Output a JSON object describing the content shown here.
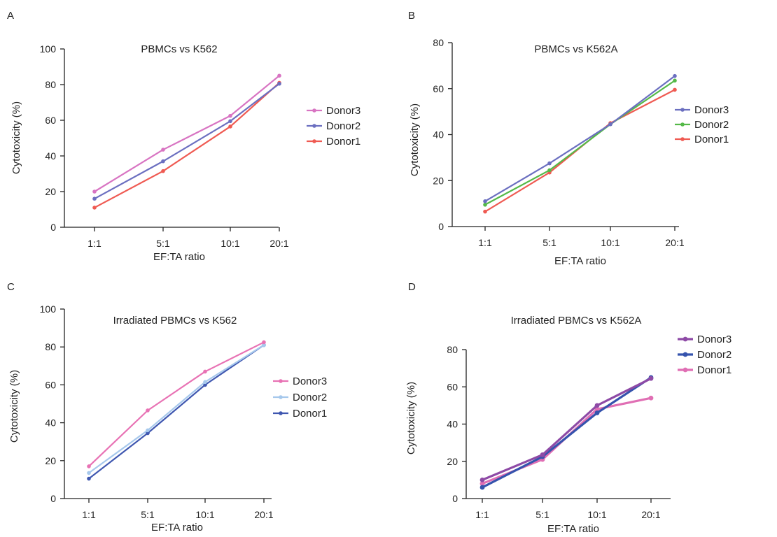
{
  "chart_data": [
    {
      "type": "line",
      "panel": "A",
      "title": "PBMCs vs K562",
      "xlabel": "EF:TA ratio",
      "ylabel": "Cytotoxicity (%)",
      "categories": [
        "1:1",
        "5:1",
        "10:1",
        "20:1"
      ],
      "ylim": [
        0,
        100
      ],
      "yticks": [
        0,
        20,
        40,
        60,
        80,
        100
      ],
      "legend_position": "right",
      "series": [
        {
          "name": "Donor3",
          "color": "#d874c2",
          "values": [
            20,
            43.5,
            62.5,
            85
          ]
        },
        {
          "name": "Donor2",
          "color": "#6b6fc0",
          "values": [
            16,
            37,
            59.5,
            80.5
          ]
        },
        {
          "name": "Donor1",
          "color": "#ef5a52",
          "values": [
            11,
            31.5,
            56.5,
            81
          ]
        }
      ]
    },
    {
      "type": "line",
      "panel": "B",
      "title": "PBMCs vs K562A",
      "xlabel": "EF:TA ratio",
      "ylabel": "Cytotoxicity (%)",
      "categories": [
        "1:1",
        "5:1",
        "10:1",
        "20:1"
      ],
      "ylim": [
        0,
        80
      ],
      "yticks": [
        0,
        20,
        40,
        60,
        80
      ],
      "legend_position": "right",
      "series": [
        {
          "name": "Donor3",
          "color": "#6b6fc0",
          "values": [
            11,
            27.5,
            44.5,
            65.5
          ]
        },
        {
          "name": "Donor2",
          "color": "#54b948",
          "values": [
            9.5,
            24.5,
            44.5,
            63.5
          ]
        },
        {
          "name": "Donor1",
          "color": "#ef5a52",
          "values": [
            6.5,
            23.5,
            45,
            59.5
          ]
        }
      ]
    },
    {
      "type": "line",
      "panel": "C",
      "title": "Irradiated PBMCs vs K562",
      "xlabel": "EF:TA ratio",
      "ylabel": "Cytotoxicity (%)",
      "categories": [
        "1:1",
        "5:1",
        "10:1",
        "20:1"
      ],
      "ylim": [
        0,
        100
      ],
      "yticks": [
        0,
        20,
        40,
        60,
        80,
        100
      ],
      "legend_position": "right",
      "series": [
        {
          "name": "Donor3",
          "color": "#e872b4",
          "values": [
            17,
            46.5,
            67,
            82.5
          ]
        },
        {
          "name": "Donor2",
          "color": "#a6c8ec",
          "values": [
            13.5,
            36,
            61.5,
            81
          ]
        },
        {
          "name": "Donor1",
          "color": "#3f57b0",
          "values": [
            10.5,
            34.5,
            60,
            81
          ]
        }
      ]
    },
    {
      "type": "line",
      "panel": "D",
      "title": "Irradiated PBMCs vs K562A",
      "xlabel": "EF:TA ratio",
      "ylabel": "Cytotoxicity (%)",
      "categories": [
        "1:1",
        "5:1",
        "10:1",
        "20:1"
      ],
      "ylim": [
        0,
        80
      ],
      "yticks": [
        0,
        20,
        40,
        60,
        80
      ],
      "legend_position": "right",
      "series": [
        {
          "name": "Donor3",
          "color": "#8e4aa6",
          "values": [
            10,
            23.5,
            50,
            64.5
          ]
        },
        {
          "name": "Donor2",
          "color": "#3553ad",
          "values": [
            6,
            22.5,
            46,
            65
          ]
        },
        {
          "name": "Donor1",
          "color": "#e06fb4",
          "values": [
            8,
            21,
            48,
            54
          ]
        }
      ]
    }
  ]
}
